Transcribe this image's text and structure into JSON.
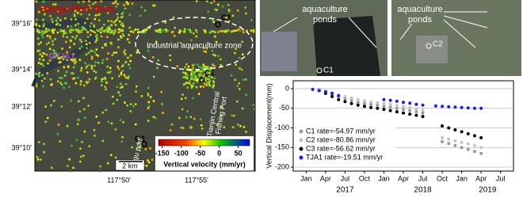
{
  "map": {
    "title": "Hangu Port Area",
    "points": [
      "C1",
      "C2",
      "C3",
      "TJA1"
    ],
    "zone_label": "Industrial aquaculture zone",
    "fishing_port": [
      "Tianjin Central",
      "Fishing Port"
    ],
    "hangu_port": "Hangu port",
    "lat_labels": [
      "39°16'",
      "39°14'",
      "39°12'",
      "39°10'"
    ],
    "lon_labels": [
      "117°50'",
      "117°55'"
    ],
    "scale": "2 km",
    "colorbar": {
      "range": [
        -160,
        80
      ],
      "ticks": [
        -150,
        -100,
        -50,
        0,
        50
      ],
      "label": "Vertical velocity (mm/yr)"
    }
  },
  "photos": [
    {
      "label": [
        "aquaculture",
        "ponds"
      ],
      "point": "C1"
    },
    {
      "label": [
        "aquaculture",
        "ponds"
      ],
      "point": "C2"
    }
  ],
  "chart_data": {
    "type": "scatter",
    "y_label": "Vertical Displacement(mm)",
    "x": [
      "2017-02",
      "2017-03",
      "2017-04",
      "2017-05",
      "2017-06",
      "2017-07",
      "2017-08",
      "2017-09",
      "2017-10",
      "2017-11",
      "2017-12",
      "2018-01",
      "2018-02",
      "2018-03",
      "2018-04",
      "2018-05",
      "2018-06",
      "2018-07",
      "2018-08",
      "2018-09",
      "2018-10",
      "2018-11",
      "2018-12",
      "2019-01",
      "2019-02",
      "2019-03",
      "2019-04"
    ],
    "xlim": [
      "2016-11",
      "2019-09"
    ],
    "xticks": [
      {
        "value": "2017-01",
        "label": "Jan"
      },
      {
        "value": "2017-04",
        "label": "Apr"
      },
      {
        "value": "2017-07",
        "label": "Jul"
      },
      {
        "value": "2017-10",
        "label": "Oct"
      },
      {
        "value": "2018-01",
        "label": "Jan"
      },
      {
        "value": "2018-04",
        "label": "Apr"
      },
      {
        "value": "2018-07",
        "label": "Jul"
      },
      {
        "value": "2018-10",
        "label": "Oct"
      },
      {
        "value": "2019-01",
        "label": "Jan"
      },
      {
        "value": "2019-04",
        "label": "Apr"
      },
      {
        "value": "2019-07",
        "label": "Jul"
      }
    ],
    "year_labels": [
      {
        "value": "2017-07",
        "label": "2017"
      },
      {
        "value": "2018-07",
        "label": "2018"
      },
      {
        "value": "2019-05",
        "label": "2019"
      }
    ],
    "ylim": [
      -210,
      20
    ],
    "yticks": [
      0,
      -50,
      -100,
      -150,
      -200
    ],
    "grid": true,
    "series": [
      {
        "name": "C1 rate=-54.97 mm/yr",
        "color": "#999999",
        "values": [
          null,
          -3,
          -8,
          -14,
          -20,
          -25,
          -30,
          -35,
          -38,
          -40,
          -42,
          -45,
          -47,
          -50,
          -53,
          -56,
          -59,
          -62,
          null,
          null,
          -135,
          -140,
          -145,
          -150,
          -155,
          -160,
          -165
        ]
      },
      {
        "name": "C2 rate=-80.86 mm/yr",
        "color": "#c4c4c4",
        "values": [
          null,
          -2,
          -6,
          -11,
          -16,
          -20,
          -24,
          -28,
          -31,
          -34,
          -36,
          -38,
          -40,
          -43,
          -46,
          -49,
          -52,
          -55,
          null,
          null,
          -125,
          -129,
          -133,
          -137,
          -141,
          -145,
          -150
        ]
      },
      {
        "name": "C3 rate=-56.62 mm/yr",
        "color": "#000000",
        "values": [
          null,
          -5,
          -12,
          -20,
          -28,
          -33,
          -38,
          -42,
          -45,
          -48,
          -50,
          -53,
          -56,
          -59,
          -62,
          -65,
          -68,
          -71,
          null,
          null,
          -95,
          -100,
          -105,
          -110,
          -115,
          -120,
          -125
        ]
      },
      {
        "name": "TJA1 rate=-19.51 mm/yr",
        "color": "#1a1aff",
        "values": [
          -2,
          -5,
          -8,
          -12,
          -18,
          null,
          null,
          null,
          null,
          null,
          null,
          -28,
          -30,
          -32,
          -35,
          -37,
          -40,
          -42,
          null,
          -44,
          -45,
          -46,
          -47,
          -48,
          -49,
          -50,
          -50
        ]
      }
    ]
  }
}
